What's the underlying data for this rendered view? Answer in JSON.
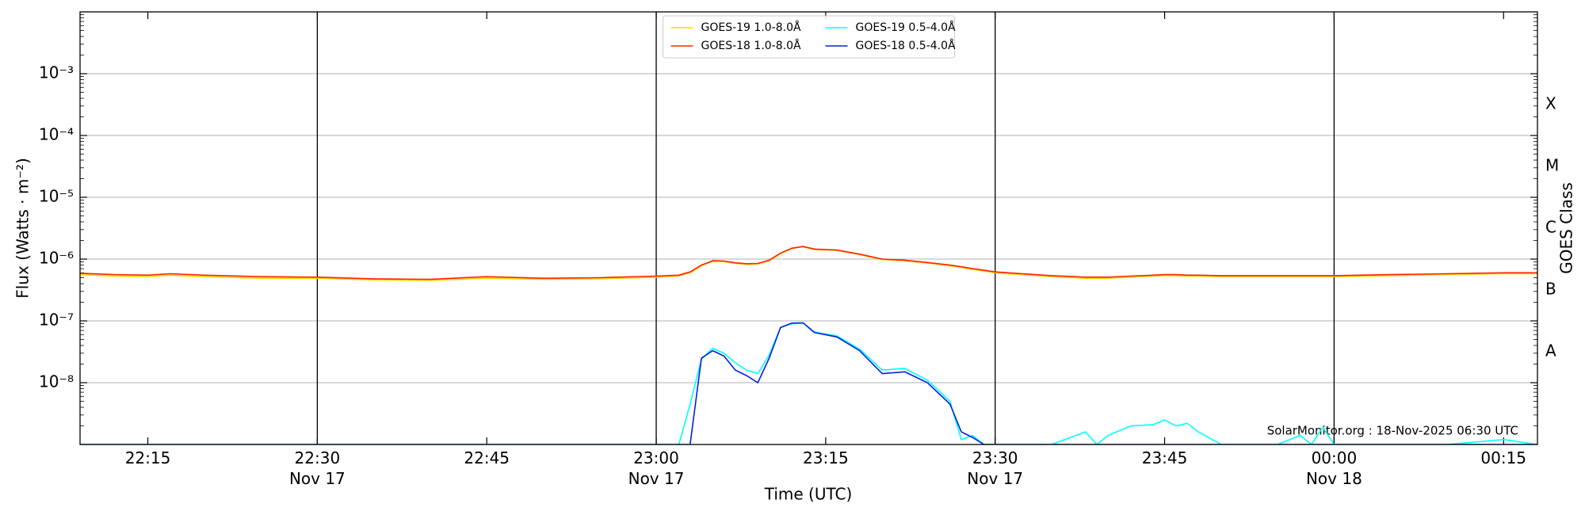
{
  "chart_data": {
    "type": "line",
    "xlabel": "Time (UTC)",
    "ylabel": "Flux (Watts · m⁻²)",
    "y2label": "GOES Class",
    "annotation": "SolarMonitor.org : 18-Nov-2025 06:30 UTC",
    "log_y": true,
    "grid": true,
    "legend": "upper center",
    "xlim": [
      "Nov 17 22:09",
      "Nov 18 00:18"
    ],
    "xticks": [
      {
        "value": "Nov 17 22:15",
        "label": "22:15"
      },
      {
        "value": "Nov 17 22:30",
        "label": "22:30\nNov 17"
      },
      {
        "value": "Nov 17 22:45",
        "label": "22:45"
      },
      {
        "value": "Nov 17 23:00",
        "label": "23:00\nNov 17"
      },
      {
        "value": "Nov 17 23:15",
        "label": "23:15"
      },
      {
        "value": "Nov 17 23:30",
        "label": "23:30\nNov 17"
      },
      {
        "value": "Nov 17 23:45",
        "label": "23:45"
      },
      {
        "value": "Nov 18 00:00",
        "label": "00:00\nNov 18"
      },
      {
        "value": "Nov 18 00:15",
        "label": "00:15"
      }
    ],
    "vlines": [
      "Nov 17 22:30",
      "Nov 17 23:00",
      "Nov 17 23:30",
      "Nov 18 00:00"
    ],
    "ylim": [
      1e-09,
      0.01
    ],
    "yticks": [
      {
        "value": 1e-08,
        "label": "10⁻⁸"
      },
      {
        "value": 1e-07,
        "label": "10⁻⁷"
      },
      {
        "value": 1e-06,
        "label": "10⁻⁶"
      },
      {
        "value": 1e-05,
        "label": "10⁻⁵"
      },
      {
        "value": 0.0001,
        "label": "10⁻⁴"
      },
      {
        "value": 0.001,
        "label": "10⁻³"
      }
    ],
    "class_labels": [
      "A",
      "B",
      "C",
      "M",
      "X"
    ],
    "class_floors": [
      1e-08,
      1e-07,
      1e-06,
      1e-05,
      0.0001
    ],
    "x": [
      "Nov 17 22:09",
      "Nov 17 22:12",
      "Nov 17 22:15",
      "Nov 17 22:17",
      "Nov 17 22:20",
      "Nov 17 22:25",
      "Nov 17 22:30",
      "Nov 17 22:35",
      "Nov 17 22:40",
      "Nov 17 22:45",
      "Nov 17 22:50",
      "Nov 17 22:55",
      "Nov 17 23:00",
      "Nov 17 23:02",
      "Nov 17 23:03",
      "Nov 17 23:04",
      "Nov 17 23:05",
      "Nov 17 23:06",
      "Nov 17 23:07",
      "Nov 17 23:08",
      "Nov 17 23:09",
      "Nov 17 23:10",
      "Nov 17 23:11",
      "Nov 17 23:12",
      "Nov 17 23:13",
      "Nov 17 23:14",
      "Nov 17 23:16",
      "Nov 17 23:18",
      "Nov 17 23:20",
      "Nov 17 23:22",
      "Nov 17 23:24",
      "Nov 17 23:26",
      "Nov 17 23:27",
      "Nov 17 23:28",
      "Nov 17 23:29",
      "Nov 17 23:30",
      "Nov 17 23:35",
      "Nov 17 23:38",
      "Nov 17 23:39",
      "Nov 17 23:40",
      "Nov 17 23:42",
      "Nov 17 23:44",
      "Nov 17 23:45",
      "Nov 17 23:46",
      "Nov 17 23:47",
      "Nov 17 23:48",
      "Nov 17 23:50",
      "Nov 17 23:55",
      "Nov 17 23:57",
      "Nov 17 23:58",
      "Nov 17 23:59",
      "Nov 18 00:00",
      "Nov 18 00:05",
      "Nov 18 00:10",
      "Nov 18 00:15",
      "Nov 18 00:18"
    ],
    "series": [
      {
        "name": "GOES-19 1.0-8.0Å",
        "color": "#ffd700",
        "values": [
          5.6e-07,
          5.3e-07,
          5.2e-07,
          5.5e-07,
          5.2e-07,
          4.9e-07,
          4.9e-07,
          4.6e-07,
          4.5e-07,
          4.9e-07,
          4.7e-07,
          4.8e-07,
          5.1e-07,
          5.3e-07,
          6e-07,
          7.8e-07,
          9.2e-07,
          9.1e-07,
          8.5e-07,
          8.2e-07,
          8.3e-07,
          9.4e-07,
          1.22e-06,
          1.48e-06,
          1.58e-06,
          1.43e-06,
          1.38e-06,
          1.18e-06,
          9.8e-07,
          9.4e-07,
          8.6e-07,
          7.8e-07,
          7.3e-07,
          6.8e-07,
          6.4e-07,
          6e-07,
          5.2e-07,
          4.9e-07,
          4.9e-07,
          4.9e-07,
          5.1e-07,
          5.3e-07,
          5.4e-07,
          5.4e-07,
          5.3e-07,
          5.3e-07,
          5.2e-07,
          5.2e-07,
          5.2e-07,
          5.2e-07,
          5.2e-07,
          5.2e-07,
          5.4e-07,
          5.6e-07,
          5.8e-07,
          5.8e-07
        ]
      },
      {
        "name": "GOES-18 1.0-8.0Å",
        "color": "#ff2200",
        "values": [
          5.9e-07,
          5.6e-07,
          5.5e-07,
          5.8e-07,
          5.5e-07,
          5.2e-07,
          5.1e-07,
          4.8e-07,
          4.7e-07,
          5.2e-07,
          4.9e-07,
          5e-07,
          5.3e-07,
          5.5e-07,
          6.2e-07,
          8e-07,
          9.4e-07,
          9.3e-07,
          8.7e-07,
          8.4e-07,
          8.5e-07,
          9.6e-07,
          1.25e-06,
          1.5e-06,
          1.6e-06,
          1.45e-06,
          1.4e-06,
          1.2e-06,
          1e-06,
          9.6e-07,
          8.8e-07,
          8e-07,
          7.5e-07,
          7e-07,
          6.6e-07,
          6.2e-07,
          5.4e-07,
          5.1e-07,
          5.1e-07,
          5.1e-07,
          5.3e-07,
          5.5e-07,
          5.6e-07,
          5.6e-07,
          5.5e-07,
          5.5e-07,
          5.4e-07,
          5.4e-07,
          5.4e-07,
          5.4e-07,
          5.4e-07,
          5.4e-07,
          5.6e-07,
          5.8e-07,
          6e-07,
          6e-07
        ]
      },
      {
        "name": "GOES-19 0.5-4.0Å",
        "color": "#00ffff",
        "values": [
          1e-09,
          1e-09,
          1e-09,
          1e-09,
          1e-09,
          1e-09,
          1e-09,
          1e-09,
          1e-09,
          1e-09,
          1e-09,
          1e-09,
          1e-09,
          1e-09,
          4.5e-09,
          2.4e-08,
          3.6e-08,
          3e-08,
          2.1e-08,
          1.6e-08,
          1.4e-08,
          2.8e-08,
          7.8e-08,
          9e-08,
          9.2e-08,
          6.6e-08,
          5.7e-08,
          3.5e-08,
          1.6e-08,
          1.7e-08,
          1.1e-08,
          5e-09,
          1.2e-09,
          1.4e-09,
          1e-09,
          1e-09,
          1e-09,
          1.6e-09,
          1e-09,
          1.4e-09,
          2e-09,
          2.1e-09,
          2.5e-09,
          2e-09,
          2.2e-09,
          1.6e-09,
          1e-09,
          1e-09,
          1.4e-09,
          1e-09,
          1.9e-09,
          1e-09,
          1e-09,
          1e-09,
          1.2e-09,
          1e-09
        ]
      },
      {
        "name": "GOES-18 0.5-4.0Å",
        "color": "#0022dd",
        "values": [
          1e-09,
          1e-09,
          1e-09,
          1e-09,
          1e-09,
          1e-09,
          1e-09,
          1e-09,
          1e-09,
          1e-09,
          1e-09,
          1e-09,
          1e-09,
          1e-09,
          1e-09,
          2.5e-08,
          3.3e-08,
          2.7e-08,
          1.6e-08,
          1.3e-08,
          1e-08,
          2.5e-08,
          7.8e-08,
          9.2e-08,
          9.3e-08,
          6.5e-08,
          5.5e-08,
          3.3e-08,
          1.4e-08,
          1.5e-08,
          1e-08,
          4.5e-09,
          1.6e-09,
          1.3e-09,
          1e-09,
          1e-09,
          1e-09,
          1e-09,
          1e-09,
          1e-09,
          1e-09,
          1e-09,
          1e-09,
          1e-09,
          1e-09,
          1e-09,
          1e-09,
          1e-09,
          1e-09,
          1e-09,
          1e-09,
          1e-09,
          1e-09,
          1e-09,
          1e-09,
          1e-09
        ]
      }
    ]
  }
}
